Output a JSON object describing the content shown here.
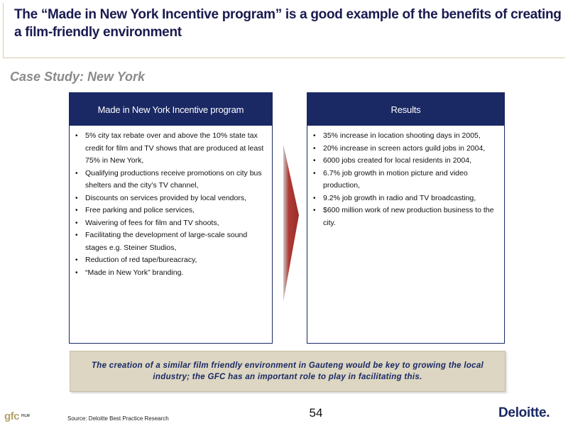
{
  "title": "The “Made in New York Incentive program” is a good example of the benefits of creating a film-friendly environment",
  "subtitle": "Case Study: New York",
  "left_panel": {
    "header": "Made in New York Incentive program",
    "items": [
      " 5% city tax rebate over and above the 10% state tax credit for film and TV shows that are produced at least 75% in New York,",
      "Qualifying productions receive promotions on city bus shelters and the city’s TV channel,",
      "Discounts on services provided by local vendors,",
      "Free parking and police services,",
      "Waivering of fees for film and TV shoots,",
      "Facilitating the development of large-scale sound stages e.g. Steiner Studios,",
      "Reduction of red tape/bureacracy,",
      "“Made in New York” branding."
    ]
  },
  "right_panel": {
    "header": "Results",
    "items": [
      "35% increase in location shooting days in 2005,",
      "20% increase in screen actors guild jobs in 2004,",
      "6000 jobs created for local residents in 2004,",
      "6.7% job growth in motion picture and video production,",
      "9.2% job growth in radio and TV broadcasting,",
      "$600 million work of new production business to the city."
    ]
  },
  "callout": "The creation of a similar film friendly environment in Gauteng would be key to growing the local industry; the GFC has an important role to play in facilitating this.",
  "footer": {
    "logo_gfc": "gfc",
    "logo_film": "FILM",
    "source": "Source: Deloitte Best Practice Research",
    "page_number": "54",
    "deloitte": "Deloitte."
  },
  "colors": {
    "navy": "#1a2864",
    "arrow_red": "#b03a35",
    "callout_bg": "#dcd6c2",
    "subtitle_gray": "#8a8a8a"
  }
}
